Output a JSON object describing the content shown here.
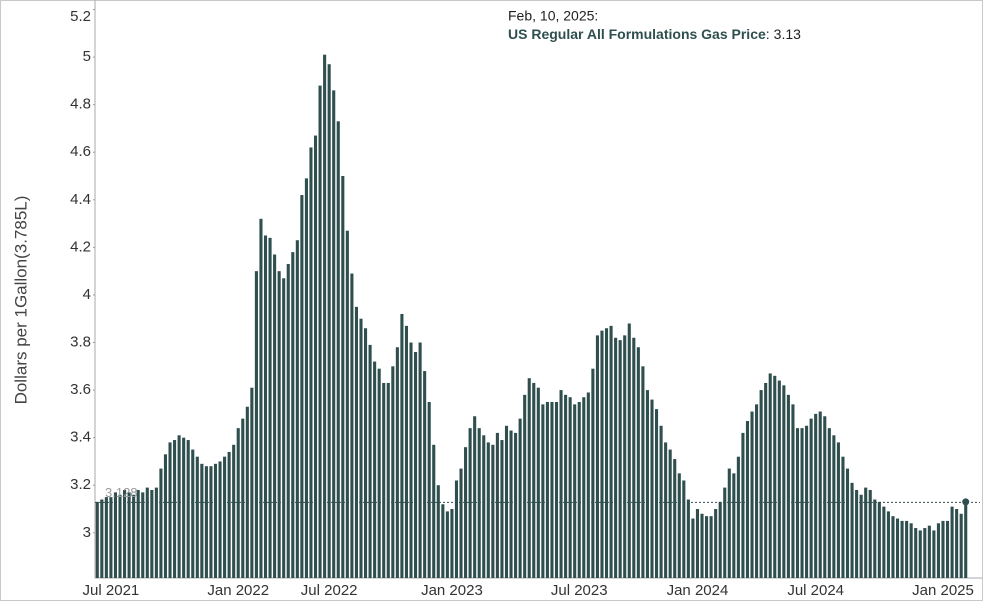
{
  "chart_data": {
    "type": "bar",
    "y_label": "Dollars per 1Gallon(3.785L)",
    "hover_date": "Feb, 10, 2025:",
    "hover_series": "US Regular All Formulations Gas Price",
    "hover_separator": ":",
    "reference_line": 3.128,
    "color": "#2f4f4f",
    "ylim": [
      2.81,
      5.2
    ],
    "yticks": [
      3,
      3.2,
      3.4,
      3.6,
      3.8,
      4,
      4.2,
      4.4,
      4.6,
      4.8,
      5,
      5.2
    ],
    "categories": [
      null,
      null,
      null,
      "Jul 2021",
      null,
      null,
      null,
      null,
      null,
      null,
      null,
      null,
      null,
      null,
      null,
      null,
      null,
      null,
      null,
      null,
      null,
      null,
      null,
      null,
      null,
      null,
      null,
      null,
      null,
      null,
      null,
      "Jan 2022",
      null,
      null,
      null,
      null,
      null,
      null,
      null,
      null,
      null,
      null,
      null,
      null,
      null,
      null,
      null,
      null,
      null,
      null,
      null,
      "Jul 2022",
      null,
      null,
      null,
      null,
      null,
      null,
      null,
      null,
      null,
      null,
      null,
      null,
      null,
      null,
      null,
      null,
      null,
      null,
      null,
      null,
      null,
      null,
      null,
      null,
      null,
      null,
      "Jan 2023",
      null,
      null,
      null,
      null,
      null,
      null,
      null,
      null,
      null,
      null,
      null,
      null,
      null,
      null,
      null,
      null,
      null,
      null,
      null,
      null,
      null,
      null,
      null,
      null,
      null,
      null,
      null,
      "Jul 2023",
      null,
      null,
      null,
      null,
      null,
      null,
      null,
      null,
      null,
      null,
      null,
      null,
      null,
      null,
      null,
      null,
      null,
      null,
      null,
      null,
      null,
      null,
      null,
      null,
      null,
      "Jan 2024",
      null,
      null,
      null,
      null,
      null,
      null,
      null,
      null,
      null,
      null,
      null,
      null,
      null,
      null,
      null,
      null,
      null,
      null,
      null,
      null,
      null,
      null,
      null,
      null,
      null,
      "Jul 2024",
      null,
      null,
      null,
      null,
      null,
      null,
      null,
      null,
      null,
      null,
      null,
      null,
      null,
      null,
      null,
      null,
      null,
      null,
      null,
      null,
      null,
      null,
      null,
      null,
      null,
      null,
      null,
      "Jan 2025",
      null,
      null,
      null,
      null,
      null
    ],
    "values": [
      3.13,
      3.14,
      3.15,
      3.15,
      3.17,
      3.16,
      3.18,
      3.17,
      3.16,
      3.18,
      3.17,
      3.19,
      3.18,
      3.19,
      3.27,
      3.33,
      3.38,
      3.39,
      3.41,
      3.4,
      3.39,
      3.35,
      3.32,
      3.29,
      3.28,
      3.28,
      3.29,
      3.3,
      3.32,
      3.34,
      3.37,
      3.44,
      3.48,
      3.53,
      3.61,
      4.1,
      4.32,
      4.25,
      4.24,
      4.17,
      4.1,
      4.07,
      4.13,
      4.18,
      4.23,
      4.42,
      4.49,
      4.62,
      4.67,
      4.88,
      5.01,
      4.97,
      4.86,
      4.73,
      4.5,
      4.27,
      4.09,
      3.95,
      3.9,
      3.86,
      3.79,
      3.72,
      3.69,
      3.63,
      3.63,
      3.7,
      3.78,
      3.92,
      3.87,
      3.8,
      3.76,
      3.8,
      3.68,
      3.55,
      3.37,
      3.2,
      3.12,
      3.09,
      3.1,
      3.22,
      3.27,
      3.36,
      3.44,
      3.49,
      3.44,
      3.41,
      3.38,
      3.37,
      3.42,
      3.39,
      3.45,
      3.43,
      3.42,
      3.48,
      3.58,
      3.65,
      3.63,
      3.61,
      3.54,
      3.55,
      3.55,
      3.55,
      3.6,
      3.58,
      3.57,
      3.54,
      3.55,
      3.57,
      3.59,
      3.69,
      3.83,
      3.85,
      3.86,
      3.87,
      3.82,
      3.81,
      3.83,
      3.88,
      3.82,
      3.78,
      3.7,
      3.6,
      3.56,
      3.52,
      3.45,
      3.38,
      3.35,
      3.31,
      3.25,
      3.22,
      3.14,
      3.06,
      3.1,
      3.08,
      3.07,
      3.07,
      3.1,
      3.13,
      3.19,
      3.27,
      3.25,
      3.32,
      3.42,
      3.47,
      3.51,
      3.54,
      3.6,
      3.63,
      3.67,
      3.66,
      3.64,
      3.62,
      3.58,
      3.54,
      3.44,
      3.44,
      3.45,
      3.48,
      3.5,
      3.51,
      3.49,
      3.44,
      3.41,
      3.38,
      3.32,
      3.27,
      3.21,
      3.18,
      3.16,
      3.19,
      3.18,
      3.14,
      3.13,
      3.11,
      3.09,
      3.07,
      3.06,
      3.05,
      3.05,
      3.04,
      3.02,
      3.01,
      3.02,
      3.03,
      3.01,
      3.04,
      3.05,
      3.05,
      3.11,
      3.1,
      3.08,
      3.13
    ]
  }
}
